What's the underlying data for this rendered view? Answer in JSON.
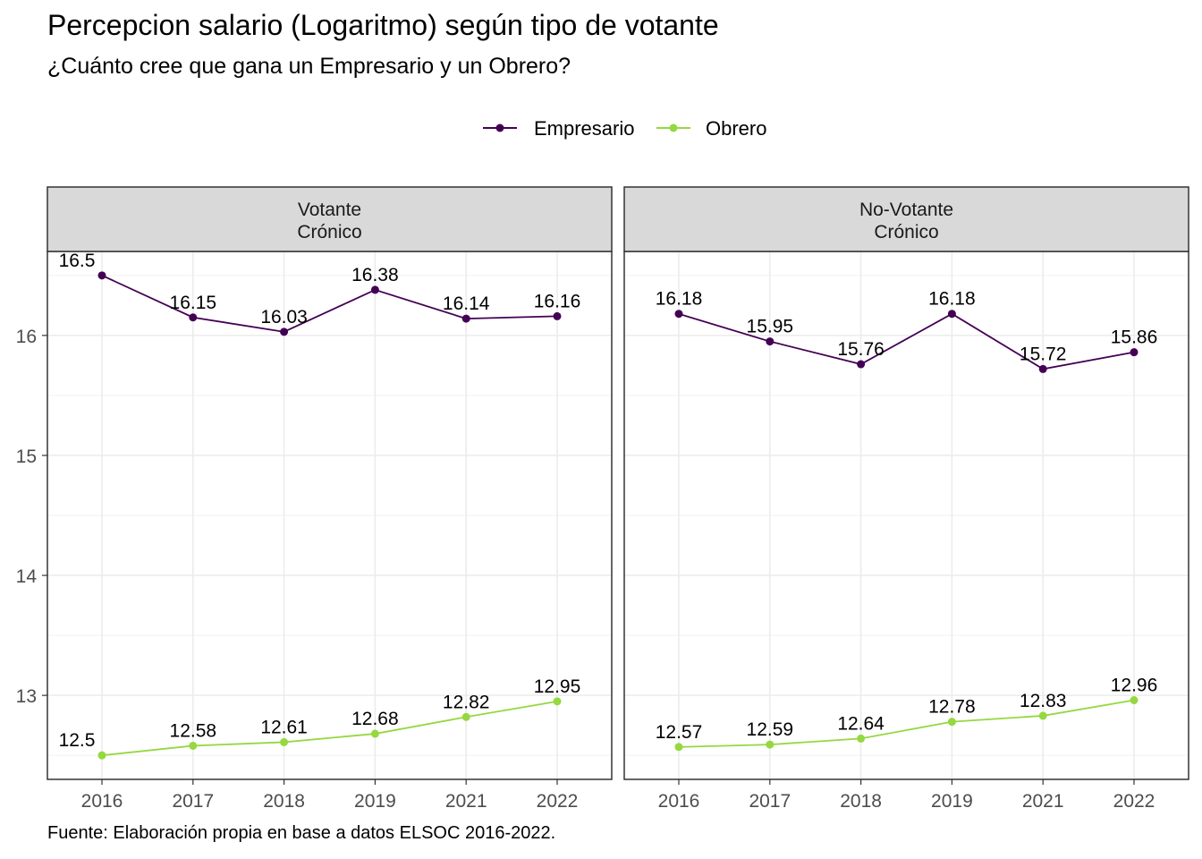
{
  "title": "Percepcion salario (Logaritmo) según tipo de votante",
  "subtitle": "¿Cuánto cree que gana un Empresario y un Obrero?",
  "caption": "Fuente: Elaboración propia en base a datos ELSOC 2016-2022.",
  "colors": {
    "Empresario": "#440154",
    "Obrero": "#95D840"
  },
  "chart_data": {
    "type": "line",
    "categories": [
      "2016",
      "2017",
      "2018",
      "2019",
      "2021",
      "2022"
    ],
    "yticks": [
      13,
      14,
      15,
      16
    ],
    "ylim": [
      12.3,
      16.7
    ],
    "grid": true,
    "legend": {
      "position": "top",
      "entries": [
        "Empresario",
        "Obrero"
      ]
    },
    "panels": [
      {
        "strip": [
          "Votante",
          "Crónico"
        ],
        "series": [
          {
            "name": "Empresario",
            "values": [
              16.5,
              16.15,
              16.03,
              16.38,
              16.14,
              16.16
            ],
            "labels": [
              "16.5",
              "16.15",
              "16.03",
              "16.38",
              "16.14",
              "16.16"
            ]
          },
          {
            "name": "Obrero",
            "values": [
              12.5,
              12.58,
              12.61,
              12.68,
              12.82,
              12.95
            ],
            "labels": [
              "12.5",
              "12.58",
              "12.61",
              "12.68",
              "12.82",
              "12.95"
            ]
          }
        ]
      },
      {
        "strip": [
          "No-Votante",
          "Crónico"
        ],
        "series": [
          {
            "name": "Empresario",
            "values": [
              16.18,
              15.95,
              15.76,
              16.18,
              15.72,
              15.86
            ],
            "labels": [
              "16.18",
              "15.95",
              "15.76",
              "16.18",
              "15.72",
              "15.86"
            ]
          },
          {
            "name": "Obrero",
            "values": [
              12.57,
              12.59,
              12.64,
              12.78,
              12.83,
              12.96
            ],
            "labels": [
              "12.57",
              "12.59",
              "12.64",
              "12.78",
              "12.83",
              "12.96"
            ]
          }
        ]
      }
    ]
  }
}
